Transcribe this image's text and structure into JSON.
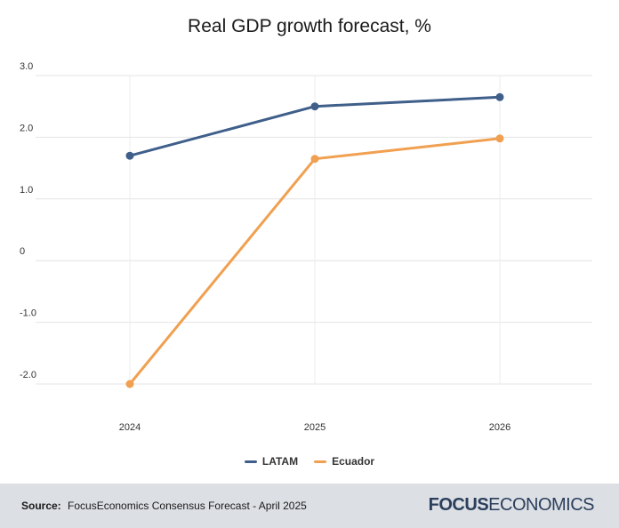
{
  "chart_data": {
    "type": "line",
    "title": "Real GDP growth forecast, %",
    "categories": [
      "2024",
      "2025",
      "2026"
    ],
    "y_ticks": [
      "3.0",
      "2.0",
      "1.0",
      "0",
      "-1.0",
      "-2.0"
    ],
    "y_tick_values": [
      3,
      2,
      1,
      0,
      -1,
      -2
    ],
    "ylim": [
      -2,
      3
    ],
    "grid": true,
    "legend_position": "bottom",
    "series": [
      {
        "name": "LATAM",
        "values": [
          1.7,
          2.5,
          2.65
        ],
        "color": "#3f5f8a"
      },
      {
        "name": "Ecuador",
        "values": [
          -2.0,
          1.65,
          1.98
        ],
        "color": "#f0a050"
      }
    ]
  },
  "footer": {
    "source_label": "Source:",
    "source_text": "FocusEconomics Consensus Forecast - April 2025",
    "brand_part1": "FOCUS",
    "brand_part2": "ECONOMICS"
  }
}
